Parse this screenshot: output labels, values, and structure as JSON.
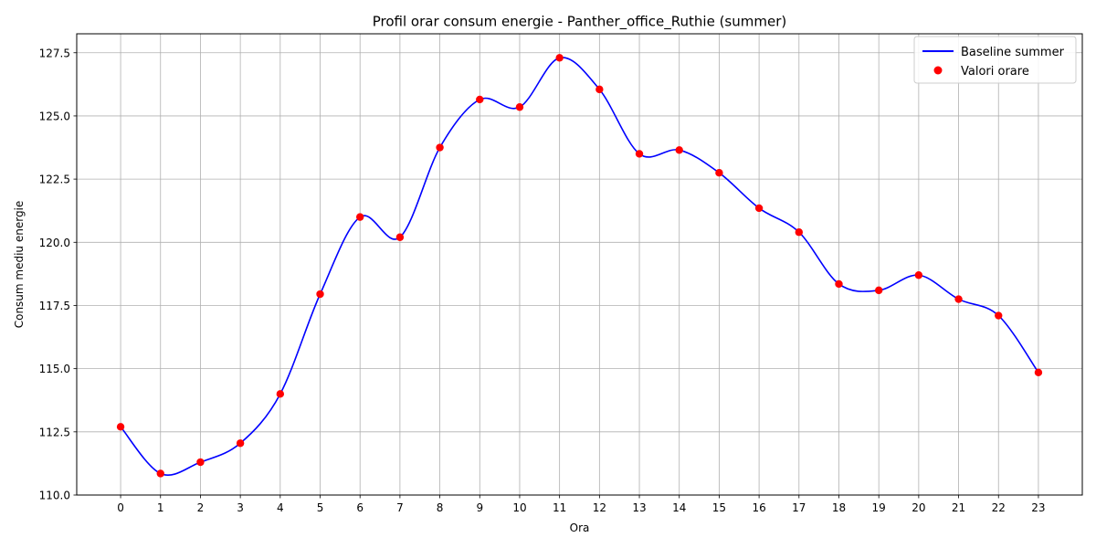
{
  "chart_data": {
    "type": "line",
    "title": "Profil orar consum energie - Panther_office_Ruthie (summer)",
    "xlabel": "Ora",
    "ylabel": "Consum mediu energie",
    "x": [
      0,
      1,
      2,
      3,
      4,
      5,
      6,
      7,
      8,
      9,
      10,
      11,
      12,
      13,
      14,
      15,
      16,
      17,
      18,
      19,
      20,
      21,
      22,
      23
    ],
    "x_tick_labels": [
      "0",
      "1",
      "2",
      "3",
      "4",
      "5",
      "6",
      "7",
      "8",
      "9",
      "10",
      "11",
      "12",
      "13",
      "14",
      "15",
      "16",
      "17",
      "18",
      "19",
      "20",
      "21",
      "22",
      "23"
    ],
    "xlim": [
      -1.1,
      24.1
    ],
    "ylim": [
      110.0,
      128.25
    ],
    "y_ticks": [
      110.0,
      112.5,
      115.0,
      117.5,
      120.0,
      122.5,
      125.0,
      127.5
    ],
    "y_tick_labels": [
      "110.0",
      "112.5",
      "115.0",
      "117.5",
      "120.0",
      "122.5",
      "125.0",
      "127.5"
    ],
    "grid": true,
    "legend_position": "top-right",
    "series": [
      {
        "name": "Baseline summer",
        "kind": "smooth-line",
        "color": "#0000ff",
        "values": [
          112.7,
          110.85,
          111.3,
          112.05,
          114.0,
          117.95,
          121.0,
          120.2,
          123.75,
          125.65,
          125.35,
          127.3,
          126.05,
          123.5,
          123.65,
          122.75,
          121.35,
          120.4,
          118.35,
          118.1,
          118.7,
          117.75,
          117.1,
          114.85
        ]
      },
      {
        "name": "Valori orare",
        "kind": "scatter",
        "color": "#ff0000",
        "values": [
          112.7,
          110.85,
          111.3,
          112.05,
          114.0,
          117.95,
          121.0,
          120.2,
          123.75,
          125.65,
          125.35,
          127.3,
          126.05,
          123.5,
          123.65,
          122.75,
          121.35,
          120.4,
          118.35,
          118.1,
          118.7,
          117.75,
          117.1,
          114.85
        ]
      }
    ]
  }
}
